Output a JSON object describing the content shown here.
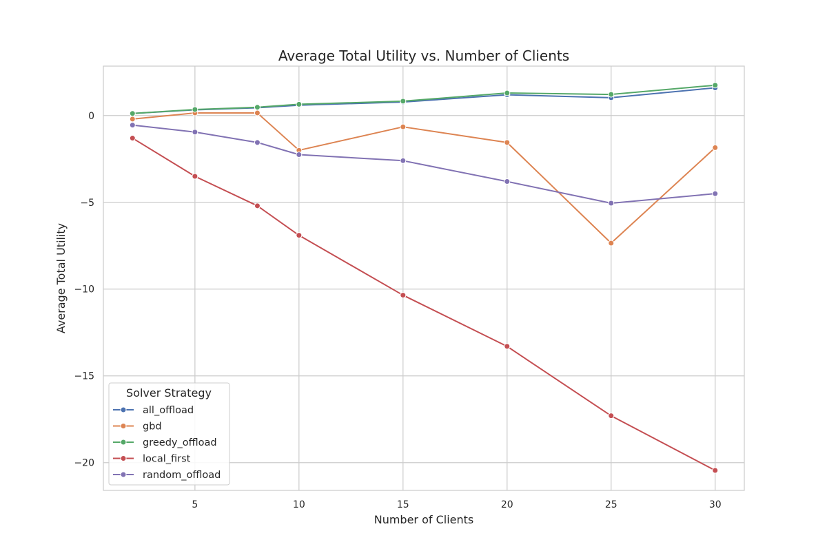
{
  "chart_data": {
    "type": "line",
    "title": "Average Total Utility vs. Number of Clients",
    "xlabel": "Number of Clients",
    "ylabel": "Average Total Utility",
    "x": [
      2,
      5,
      8,
      10,
      15,
      20,
      25,
      30
    ],
    "xlim": [
      0.6,
      31.4
    ],
    "ylim": [
      -21.6,
      2.85
    ],
    "xticks": [
      5,
      10,
      15,
      20,
      25,
      30
    ],
    "yticks": [
      0,
      -5,
      -10,
      -15,
      -20
    ],
    "ytick_labels": [
      "0",
      "−5",
      "−10",
      "−15",
      "−20"
    ],
    "grid": true,
    "legend": {
      "title": "Solver Strategy",
      "placement": "lower-left"
    },
    "series": [
      {
        "name": "all_offload",
        "color": "#4c72b0",
        "values": [
          0.12,
          0.33,
          0.45,
          0.6,
          0.78,
          1.2,
          1.03,
          1.6
        ]
      },
      {
        "name": "gbd",
        "color": "#dd8452",
        "values": [
          -0.2,
          0.15,
          0.15,
          -2.0,
          -0.65,
          -1.55,
          -7.35,
          -1.85
        ]
      },
      {
        "name": "greedy_offload",
        "color": "#55a868",
        "values": [
          0.12,
          0.35,
          0.48,
          0.65,
          0.83,
          1.3,
          1.22,
          1.75
        ]
      },
      {
        "name": "local_first",
        "color": "#c44e52",
        "values": [
          -1.3,
          -3.5,
          -5.2,
          -6.9,
          -10.35,
          -13.3,
          -17.3,
          -20.45
        ]
      },
      {
        "name": "random_offload",
        "color": "#8172b3",
        "values": [
          -0.55,
          -0.95,
          -1.55,
          -2.25,
          -2.6,
          -3.8,
          -5.05,
          -4.5
        ]
      }
    ]
  }
}
